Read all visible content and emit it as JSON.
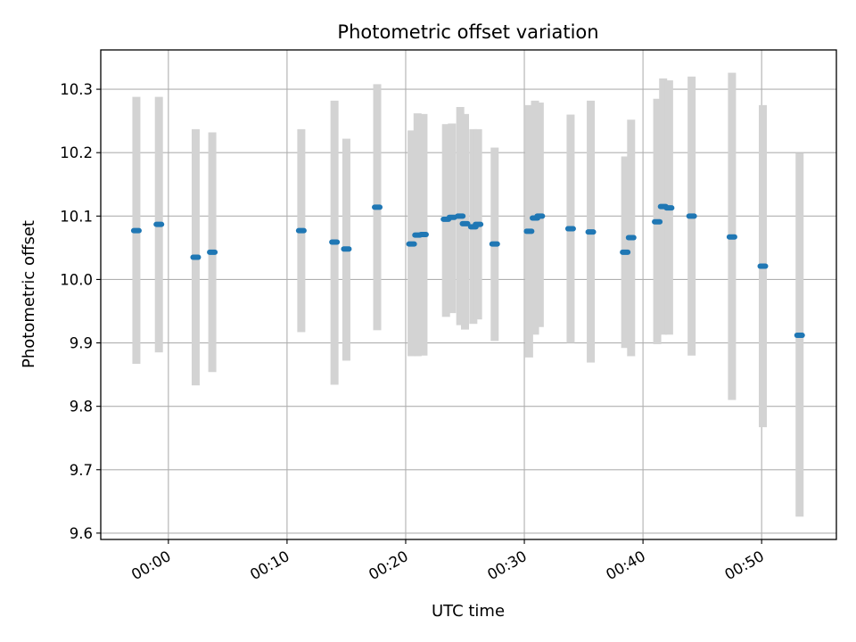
{
  "chart_data": {
    "type": "scatter",
    "title": "Photometric offset variation",
    "xlabel": "UTC time",
    "ylabel": "Photometric offset",
    "x_unit": "minutes after 00:00 UTC",
    "xlim": [
      -5.7,
      56.3
    ],
    "ylim": [
      9.59,
      10.362
    ],
    "x_ticks": [
      {
        "value": 0,
        "label": "00:00"
      },
      {
        "value": 10,
        "label": "00:10"
      },
      {
        "value": 20,
        "label": "00:20"
      },
      {
        "value": 30,
        "label": "00:30"
      },
      {
        "value": 40,
        "label": "00:40"
      },
      {
        "value": 50,
        "label": "00:50"
      }
    ],
    "y_ticks": [
      {
        "value": 9.6,
        "label": "9.6"
      },
      {
        "value": 9.7,
        "label": "9.7"
      },
      {
        "value": 9.8,
        "label": "9.8"
      },
      {
        "value": 9.9,
        "label": "9.9"
      },
      {
        "value": 10.0,
        "label": "10.0"
      },
      {
        "value": 10.1,
        "label": "10.1"
      },
      {
        "value": 10.2,
        "label": "10.2"
      },
      {
        "value": 10.3,
        "label": "10.3"
      }
    ],
    "grid": true,
    "marker_color": "#1f77b4",
    "errorbar_color": "#d3d3d3",
    "series": [
      {
        "points": [
          {
            "x": -2.7,
            "y": 10.077,
            "err_low": 9.867,
            "err_high": 10.288
          },
          {
            "x": -0.8,
            "y": 10.087,
            "err_low": 9.885,
            "err_high": 10.288
          },
          {
            "x": 2.3,
            "y": 10.035,
            "err_low": 9.833,
            "err_high": 10.237
          },
          {
            "x": 3.7,
            "y": 10.043,
            "err_low": 9.854,
            "err_high": 10.232
          },
          {
            "x": 11.2,
            "y": 10.077,
            "err_low": 9.917,
            "err_high": 10.237
          },
          {
            "x": 14.0,
            "y": 10.059,
            "err_low": 9.834,
            "err_high": 10.282
          },
          {
            "x": 15.0,
            "y": 10.048,
            "err_low": 9.872,
            "err_high": 10.222
          },
          {
            "x": 17.6,
            "y": 10.114,
            "err_low": 9.92,
            "err_high": 10.308
          },
          {
            "x": 20.5,
            "y": 10.056,
            "err_low": 9.879,
            "err_high": 10.235
          },
          {
            "x": 21.0,
            "y": 10.07,
            "err_low": 9.879,
            "err_high": 10.262
          },
          {
            "x": 21.5,
            "y": 10.071,
            "err_low": 9.88,
            "err_high": 10.261
          },
          {
            "x": 23.4,
            "y": 10.095,
            "err_low": 9.941,
            "err_high": 10.245
          },
          {
            "x": 23.9,
            "y": 10.098,
            "err_low": 9.947,
            "err_high": 10.246
          },
          {
            "x": 24.6,
            "y": 10.1,
            "err_low": 9.928,
            "err_high": 10.272
          },
          {
            "x": 25.0,
            "y": 10.088,
            "err_low": 9.921,
            "err_high": 10.261
          },
          {
            "x": 25.7,
            "y": 10.083,
            "err_low": 9.93,
            "err_high": 10.237
          },
          {
            "x": 26.1,
            "y": 10.087,
            "err_low": 9.937,
            "err_high": 10.237
          },
          {
            "x": 27.5,
            "y": 10.056,
            "err_low": 9.903,
            "err_high": 10.208
          },
          {
            "x": 30.4,
            "y": 10.076,
            "err_low": 9.877,
            "err_high": 10.275
          },
          {
            "x": 30.9,
            "y": 10.097,
            "err_low": 9.913,
            "err_high": 10.282
          },
          {
            "x": 31.3,
            "y": 10.1,
            "err_low": 9.925,
            "err_high": 10.279
          },
          {
            "x": 33.9,
            "y": 10.08,
            "err_low": 9.9,
            "err_high": 10.26
          },
          {
            "x": 35.6,
            "y": 10.075,
            "err_low": 9.869,
            "err_high": 10.282
          },
          {
            "x": 38.5,
            "y": 10.043,
            "err_low": 9.892,
            "err_high": 10.194
          },
          {
            "x": 39.0,
            "y": 10.066,
            "err_low": 9.879,
            "err_high": 10.252
          },
          {
            "x": 41.2,
            "y": 10.091,
            "err_low": 9.898,
            "err_high": 10.285
          },
          {
            "x": 41.7,
            "y": 10.115,
            "err_low": 9.913,
            "err_high": 10.317
          },
          {
            "x": 42.2,
            "y": 10.113,
            "err_low": 9.913,
            "err_high": 10.314
          },
          {
            "x": 44.1,
            "y": 10.1,
            "err_low": 9.88,
            "err_high": 10.32
          },
          {
            "x": 47.5,
            "y": 10.067,
            "err_low": 9.81,
            "err_high": 10.326
          },
          {
            "x": 50.1,
            "y": 10.021,
            "err_low": 9.767,
            "err_high": 10.275
          },
          {
            "x": 53.2,
            "y": 9.912,
            "err_low": 9.626,
            "err_high": 10.199
          }
        ]
      }
    ]
  }
}
